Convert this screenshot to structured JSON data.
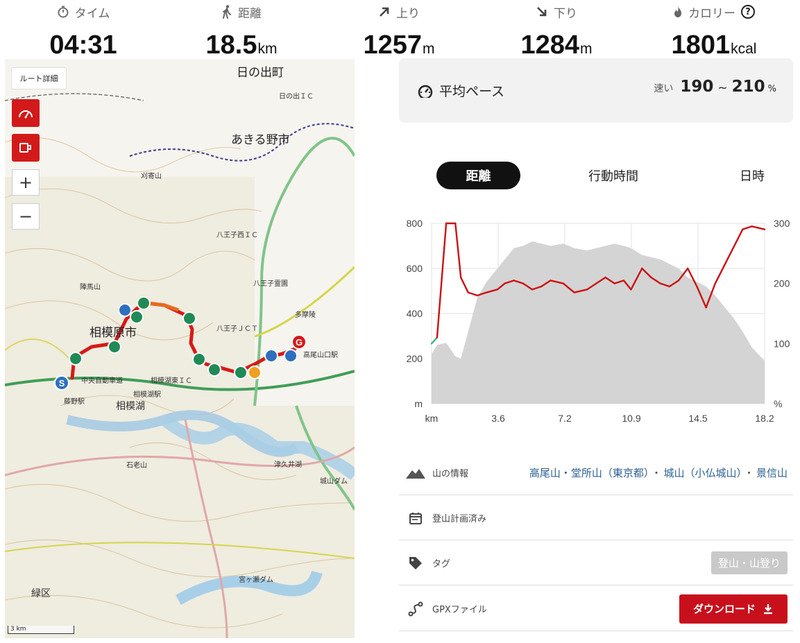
{
  "stats": [
    {
      "icon": "stopwatch-icon",
      "label": "タイム",
      "value": "04:31",
      "unit": ""
    },
    {
      "icon": "walker-icon",
      "label": "距離",
      "value": "18.5",
      "unit": "km"
    },
    {
      "icon": "arrow-up-right-icon",
      "label": "上り",
      "value": "1257",
      "unit": "m"
    },
    {
      "icon": "arrow-down-right-icon",
      "label": "下り",
      "value": "1284",
      "unit": "m"
    },
    {
      "icon": "flame-icon",
      "label": "カロリー",
      "value": "1801",
      "unit": "kcal"
    }
  ],
  "map": {
    "route_details_label": "ルート詳細",
    "zoom_in": "+",
    "zoom_out": "−",
    "scale_label": "3 km",
    "labels": {
      "hinodemachi": "日の出町",
      "akiruno": "あきる野市",
      "sagamiharashi": "相模原市",
      "hachioji_nishi_ic": "八王子西ＩＣ",
      "hachioji_jct": "八王子ＪＣＴ",
      "hinode_ic": "日の出ＩＣ",
      "takaosanguchi": "高尾山口駅",
      "sagamiko_ic": "相模湖東ＩＣ",
      "sagamiko": "相模湖",
      "tsukui_lake": "津久井湖",
      "midori_ku": "緑区",
      "miyagase_dam": "宮ヶ瀬ダム",
      "shiroyama_dam": "城山ダム",
      "ishirouyama": "石老山",
      "jinbasan": "陣馬山",
      "hachioji_gorge": "八王子霊園",
      "chuo_expressway": "中央自動車道",
      "sagamiko_station": "相模湖駅",
      "fujino_station": "藤野駅",
      "kariyosan": "刈寄山",
      "tama_kougen": "多摩陵"
    }
  },
  "pace": {
    "label": "平均ペース",
    "speed_word": "速い",
    "low": "190",
    "tilde": "~",
    "high": "210",
    "unit": "%"
  },
  "tabs": [
    {
      "label": "距離",
      "active": true
    },
    {
      "label": "行動時間",
      "active": false
    },
    {
      "label": "日時",
      "active": false
    }
  ],
  "chart_data": {
    "type": "area",
    "x_unit": "km",
    "left_axis_unit": "m",
    "right_axis_unit": "%",
    "ylim_left": [
      0,
      800
    ],
    "ylim_right": [
      0,
      300
    ],
    "x_ticks": [
      "km",
      "3.6",
      "7.2",
      "10.9",
      "14.5",
      "18.2"
    ],
    "y_ticks_left": [
      "800",
      "600",
      "400",
      "200",
      "m"
    ],
    "y_ticks_right": [
      "300",
      "200",
      "100",
      "%"
    ],
    "x": [
      0,
      0.3,
      0.8,
      1.3,
      1.6,
      2.0,
      2.5,
      3.0,
      3.6,
      4.0,
      4.5,
      5.0,
      5.5,
      6.0,
      6.5,
      7.2,
      7.8,
      8.5,
      9.0,
      9.5,
      10.0,
      10.5,
      10.9,
      11.5,
      12.0,
      12.5,
      13.0,
      13.5,
      14.0,
      14.5,
      15.0,
      15.5,
      16.0,
      16.5,
      17.0,
      17.5,
      18.2
    ],
    "series": [
      {
        "values": [
          220,
          260,
          270,
          210,
          200,
          320,
          470,
          540,
          600,
          640,
          690,
          700,
          720,
          710,
          700,
          710,
          690,
          680,
          690,
          700,
          710,
          700,
          690,
          660,
          650,
          640,
          620,
          600,
          560,
          540,
          520,
          480,
          430,
          380,
          320,
          250,
          190
        ]
      },
      {
        "values": [
          100,
          110,
          300,
          300,
          210,
          185,
          180,
          185,
          190,
          200,
          205,
          200,
          190,
          195,
          205,
          200,
          185,
          190,
          200,
          210,
          200,
          205,
          190,
          225,
          210,
          200,
          195,
          205,
          225,
          195,
          160,
          200,
          230,
          260,
          290,
          295,
          290
        ]
      }
    ]
  },
  "info": {
    "mountains_label": "山の情報",
    "mountains": [
      "高尾山・堂所山（東京都）",
      "城山（小仏城山）",
      "景信山"
    ],
    "plan_label": "登山計画済み",
    "tag_label": "タグ",
    "tag_value": "登山・山登り",
    "gpx_label": "GPXファイル",
    "download_label": "ダウンロード"
  }
}
